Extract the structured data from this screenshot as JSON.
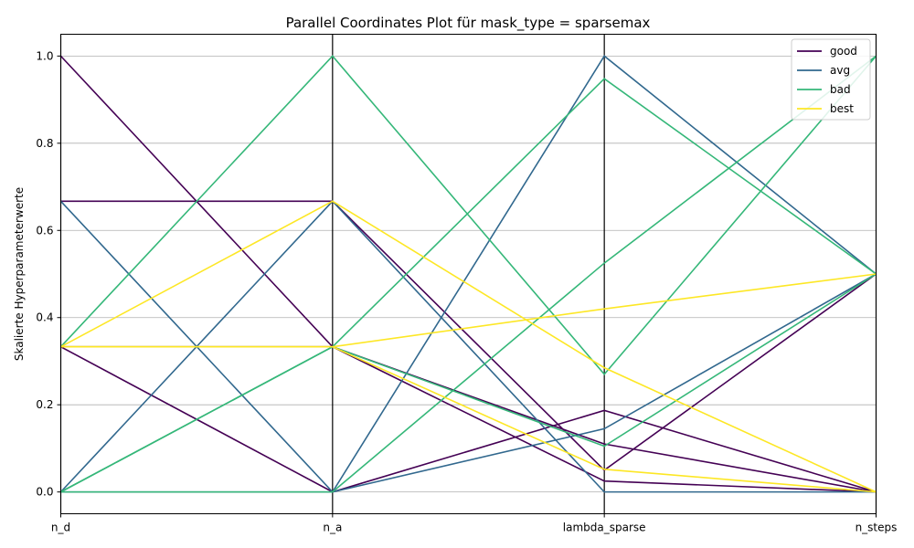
{
  "chart_data": {
    "type": "parallel-coordinates",
    "title": "Parallel Coordinates Plot für mask_type = sparsemax",
    "ylabel": "Skalierte Hyperparameterwerte",
    "axes": [
      "n_d",
      "n_a",
      "lambda_sparse",
      "n_steps"
    ],
    "ylim": [
      -0.05,
      1.05
    ],
    "yticks": [
      0.0,
      0.2,
      0.4,
      0.6,
      0.8,
      1.0
    ],
    "ytick_labels": [
      "0.0",
      "0.2",
      "0.4",
      "0.6",
      "0.8",
      "1.0"
    ],
    "grid": true,
    "legend": "top-right",
    "series": [
      {
        "name": "good",
        "color": "#440154",
        "lines": [
          [
            1.0,
            0.333,
            0.11,
            0.0
          ],
          [
            0.667,
            0.667,
            0.05,
            0.5
          ],
          [
            0.333,
            0.333,
            0.025,
            0.0
          ],
          [
            0.333,
            0.0,
            0.187,
            0.0
          ]
        ]
      },
      {
        "name": "avg",
        "color": "#31688e",
        "lines": [
          [
            0.0,
            0.0,
            1.0,
            0.5
          ],
          [
            0.667,
            0.0,
            0.145,
            0.5
          ],
          [
            0.0,
            0.667,
            0.0,
            0.0
          ]
        ]
      },
      {
        "name": "bad",
        "color": "#35b779",
        "lines": [
          [
            0.333,
            1.0,
            0.27,
            1.0
          ],
          [
            0.0,
            0.333,
            0.948,
            0.5
          ],
          [
            0.0,
            0.0,
            0.525,
            1.0
          ],
          [
            0.0,
            0.333,
            0.105,
            0.5
          ]
        ]
      },
      {
        "name": "best",
        "color": "#fde725",
        "lines": [
          [
            0.333,
            0.667,
            0.285,
            0.0
          ],
          [
            0.333,
            0.333,
            0.42,
            0.5
          ],
          [
            0.333,
            0.333,
            0.052,
            0.0
          ]
        ]
      }
    ]
  }
}
